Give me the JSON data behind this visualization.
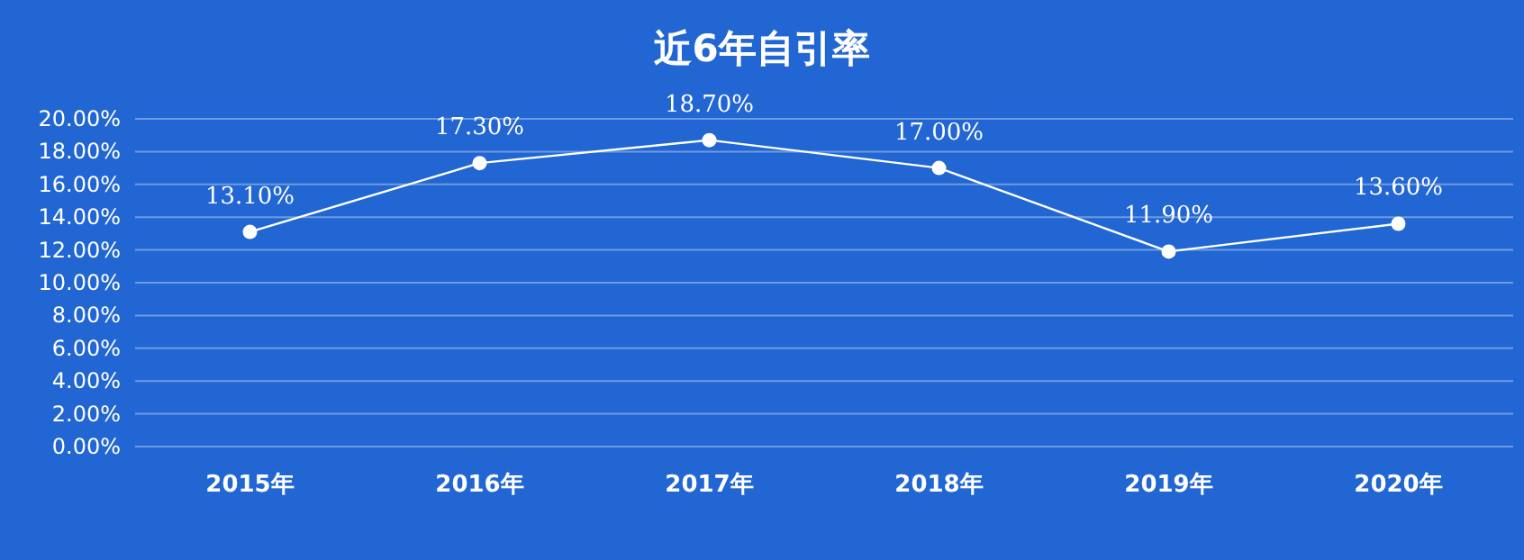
{
  "chart_data": {
    "type": "line",
    "title": "近6年自引率",
    "categories": [
      "2015年",
      "2016年",
      "2017年",
      "2018年",
      "2019年",
      "2020年"
    ],
    "series": [
      {
        "color": "#ffffff",
        "values": [
          13.1,
          17.3,
          18.7,
          17.0,
          11.9,
          13.6
        ],
        "value_labels": [
          "13.10%",
          "17.30%",
          "18.70%",
          "17.00%",
          "11.90%",
          "13.60%"
        ]
      }
    ],
    "ylim": [
      0,
      20
    ],
    "yticks": [
      {
        "value": 0,
        "label": "0.00%"
      },
      {
        "value": 2,
        "label": "2.00%"
      },
      {
        "value": 4,
        "label": "4.00%"
      },
      {
        "value": 6,
        "label": "6.00%"
      },
      {
        "value": 8,
        "label": "8.00%"
      },
      {
        "value": 10,
        "label": "10.00%"
      },
      {
        "value": 12,
        "label": "12.00%"
      },
      {
        "value": 14,
        "label": "14.00%"
      },
      {
        "value": 16,
        "label": "16.00%"
      },
      {
        "value": 18,
        "label": "18.00%"
      },
      {
        "value": 20,
        "label": "20.00%"
      }
    ],
    "grid": "y",
    "marker": "circle",
    "line_style": "solid"
  }
}
